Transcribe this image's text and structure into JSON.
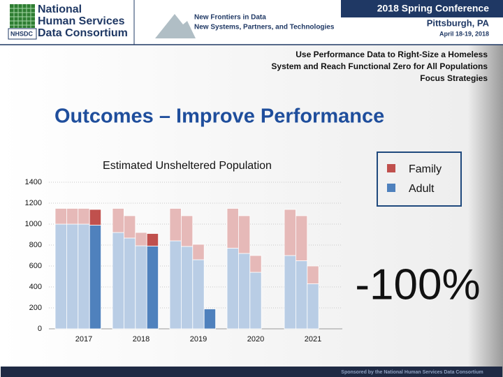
{
  "header": {
    "logo_lines": [
      "National",
      "Human Services",
      "Data Consortium"
    ],
    "logo_mark": "NHSDC",
    "tagline": [
      "New Frontiers in Data",
      "New Systems, Partners, and Technologies"
    ],
    "conference": "2018 Spring Conference",
    "location": "Pittsburgh, PA",
    "dates": "April 18-19, 2018"
  },
  "slide": {
    "subtitle_lines": [
      "Use Performance Data to Right-Size a Homeless",
      "System and Reach Functional Zero for All Populations",
      "Focus Strategies"
    ],
    "title": "Outcomes – Improve Performance"
  },
  "chart_data": {
    "type": "stacked_bar",
    "title": "Estimated Unsheltered Population",
    "annotation": "-100%",
    "categories": [
      null,
      null,
      "2017",
      null,
      null,
      null,
      null,
      "2018",
      null,
      null,
      null,
      null,
      "2019",
      null,
      null,
      null,
      null,
      "2020",
      null,
      null,
      null,
      null,
      "2021",
      null,
      null
    ],
    "series": [
      {
        "name": "Family",
        "color": "#c0504d",
        "colors": [
          "#e6b9b8",
          "#e6b9b8",
          "#e6b9b8",
          "#c0504d",
          "#e6b9b8",
          "#e6b9b8",
          "#e6b9b8",
          "#e6b9b8",
          "#c0504d",
          "#e6b9b8",
          "#e6b9b8",
          "#e6b9b8",
          "#e6b9b8",
          "#c0504d",
          "#e6b9b8",
          "#e6b9b8",
          "#e6b9b8",
          "#e6b9b8",
          "#e6b9b8",
          "#e6b9b8",
          "#e6b9b8",
          "#e6b9b8",
          "#e6b9b8",
          "#e6b9b8",
          "#e6b9b8"
        ],
        "values": [
          150,
          150,
          150,
          150,
          null,
          230,
          213,
          127,
          120,
          null,
          310,
          293,
          147,
          0,
          null,
          380,
          360,
          160,
          null,
          null,
          440,
          430,
          170,
          null,
          null
        ]
      },
      {
        "name": "Adult",
        "color": "#4f81bd",
        "colors": [
          "#b9cde5",
          "#b9cde5",
          "#b9cde5",
          "#4f81bd",
          "#b9cde5",
          "#b9cde5",
          "#b9cde5",
          "#b9cde5",
          "#4f81bd",
          "#b9cde5",
          "#b9cde5",
          "#b9cde5",
          "#b9cde5",
          "#4f81bd",
          "#b9cde5",
          "#b9cde5",
          "#b9cde5",
          "#b9cde5",
          "#b9cde5",
          "#b9cde5",
          "#b9cde5",
          "#b9cde5",
          "#b9cde5",
          "#b9cde5",
          "#b9cde5"
        ],
        "values": [
          1000,
          1000,
          1000,
          990,
          null,
          920,
          867,
          793,
          790,
          null,
          840,
          787,
          660,
          190,
          null,
          770,
          720,
          540,
          null,
          null,
          700,
          650,
          430,
          null,
          null
        ]
      }
    ],
    "ylim": [
      0,
      1400
    ],
    "yticks": [
      0,
      200,
      400,
      600,
      800,
      1000,
      1200,
      1400
    ],
    "grid": true,
    "legend": "upper right"
  },
  "footer": "Sponsored by the National Human Services Data Consortium"
}
